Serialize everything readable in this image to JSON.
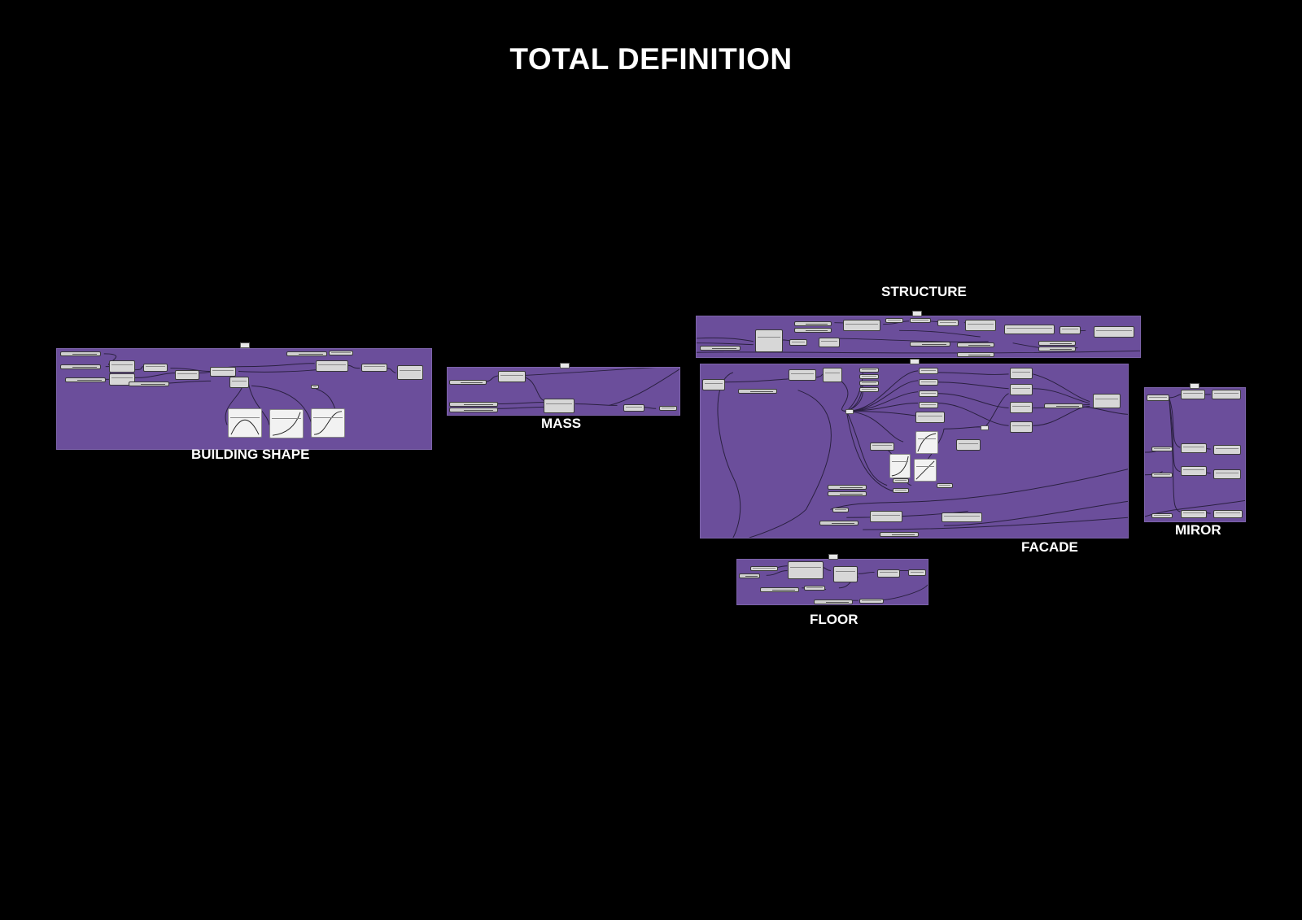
{
  "page": {
    "title": "TOTAL DEFINITION"
  },
  "groups": {
    "building_shape": {
      "label": "BUILDING SHAPE"
    },
    "mass": {
      "label": "MASS"
    },
    "structure": {
      "label": "STRUCTURE"
    },
    "facade": {
      "label": "FACADE"
    },
    "miror": {
      "label": "MIROR"
    },
    "floor": {
      "label": "FLOOR"
    }
  },
  "colors": {
    "background": "#000000",
    "group_fill": "#6b4e9b",
    "node_fill": "#d7d7d7",
    "wire": "#2a2040",
    "label": "#ffffff"
  }
}
